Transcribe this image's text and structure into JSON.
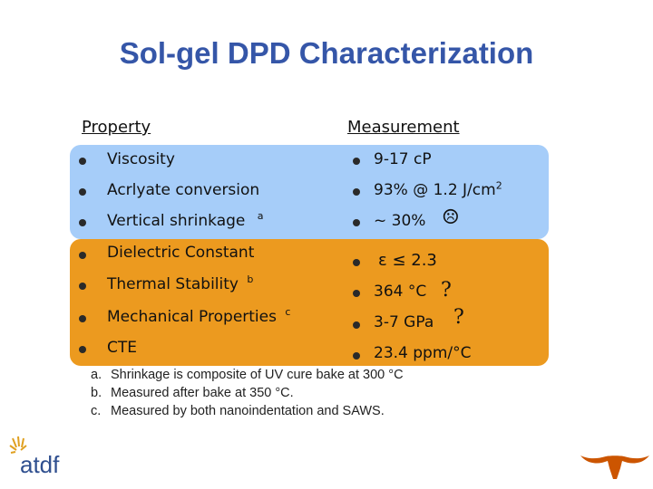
{
  "title": "Sol-gel DPD Characterization",
  "headers": {
    "property": "Property",
    "measurement": "Measurement"
  },
  "rows": [
    {
      "property": "Viscosity",
      "prop_sup": "",
      "measurement": "9-17 cP",
      "meas_sup": ""
    },
    {
      "property": "Acrlyate conversion",
      "prop_sup": "",
      "measurement": "93% @ 1.2 J/cm",
      "meas_sup": "2"
    },
    {
      "property": "Vertical shrinkage",
      "prop_sup": "a",
      "measurement": "~ 30%",
      "meas_sup": ""
    },
    {
      "property": "Dielectric Constant",
      "prop_sup": "",
      "measurement": "ε ≤ 2.3",
      "meas_sup": ""
    },
    {
      "property": "Thermal Stability",
      "prop_sup": "b",
      "measurement": "364 °C",
      "meas_sup": ""
    },
    {
      "property": "Mechanical Properties",
      "prop_sup": "c",
      "measurement": "3-7 GPa",
      "meas_sup": ""
    },
    {
      "property": "CTE",
      "prop_sup": "",
      "measurement": "23.4 ppm/°C",
      "meas_sup": ""
    }
  ],
  "marks": {
    "frown": "☹",
    "q1": "?",
    "q2": "?"
  },
  "notes": [
    {
      "letter": "a.",
      "text": "Shrinkage is composite of UV cure bake at 300 °C"
    },
    {
      "letter": "b.",
      "text": "Measured after bake at 350 °C."
    },
    {
      "letter": "c.",
      "text": "Measured by both nanoindentation and SAWS."
    }
  ],
  "logos": {
    "atdf_text": "atdf"
  },
  "colors": {
    "title": "#3556a8",
    "blue_band": "#a6cdf9",
    "orange_band": "#ec9a1f"
  }
}
